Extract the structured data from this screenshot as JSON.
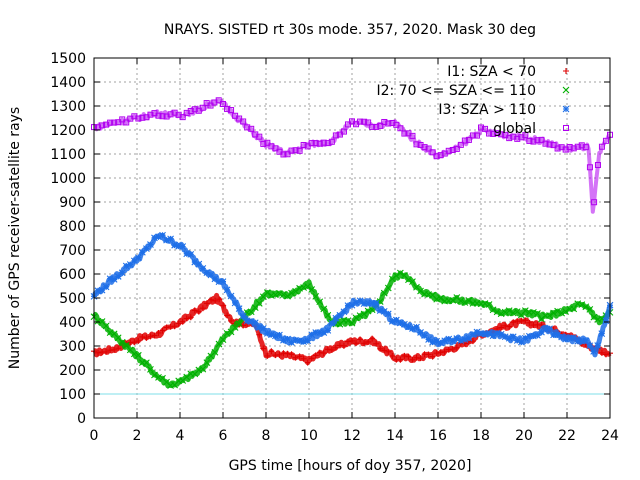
{
  "chart_data": {
    "type": "scatter",
    "title": "NRAYS. SISTED rt 30s mode. 357, 2020. Mask 30 deg",
    "xlabel": "GPS time [hours of doy 357, 2020]",
    "ylabel": "Number of GPS receiver-satellite rays",
    "xlim": [
      0,
      24
    ],
    "ylim": [
      0,
      1500
    ],
    "xticks": [
      "0",
      "2",
      "4",
      "6",
      "8",
      "10",
      "12",
      "14",
      "16",
      "18",
      "20",
      "22",
      "24"
    ],
    "yticks": [
      "0",
      "100",
      "200",
      "300",
      "400",
      "500",
      "600",
      "700",
      "800",
      "900",
      "1000",
      "1100",
      "1200",
      "1300",
      "1400",
      "1500"
    ],
    "grid": true,
    "legend_position": "top-right",
    "reference_line": {
      "y": 100,
      "color": "#7fdfe8"
    },
    "series": [
      {
        "name": "I1: SZA < 70",
        "marker": "+",
        "color": "#e00000",
        "x": [
          0,
          1,
          2,
          3,
          4,
          5,
          5.7,
          6.5,
          7.5,
          8,
          9,
          10,
          11,
          12,
          13,
          14,
          15,
          16,
          17,
          18,
          19,
          20,
          21,
          22,
          23,
          24
        ],
        "y": [
          270,
          290,
          330,
          350,
          400,
          460,
          500,
          400,
          390,
          270,
          260,
          240,
          290,
          320,
          320,
          250,
          250,
          270,
          300,
          350,
          380,
          400,
          380,
          350,
          300,
          270
        ]
      },
      {
        "name": "I2: 70 <= SZA <= 110",
        "marker": "x",
        "color": "#00b000",
        "x": [
          0,
          1,
          2,
          3,
          3.5,
          4,
          5,
          6,
          7,
          8,
          9,
          10,
          11,
          12,
          13,
          14,
          14.5,
          15,
          16,
          17,
          18,
          19,
          20,
          21,
          22,
          22.5,
          23,
          23.5,
          24
        ],
        "y": [
          430,
          340,
          260,
          170,
          140,
          150,
          200,
          330,
          420,
          520,
          510,
          560,
          400,
          400,
          450,
          590,
          600,
          540,
          500,
          490,
          480,
          440,
          440,
          420,
          450,
          470,
          460,
          400,
          440
        ]
      },
      {
        "name": "I3: SZA > 110",
        "marker": "*",
        "color": "#1e6fe8",
        "x": [
          0,
          1,
          2,
          3,
          4,
          5,
          6,
          7,
          8,
          9,
          10,
          11,
          12,
          13,
          14,
          15,
          16,
          17,
          18,
          19,
          20,
          21,
          22,
          23,
          23.3,
          24
        ],
        "y": [
          510,
          590,
          660,
          760,
          720,
          630,
          560,
          420,
          360,
          320,
          330,
          380,
          480,
          480,
          400,
          370,
          310,
          330,
          360,
          340,
          320,
          370,
          330,
          320,
          260,
          470
        ]
      },
      {
        "name": "global",
        "marker": "square",
        "color": "#b000f0",
        "x": [
          0,
          1,
          2,
          3,
          4,
          5,
          5.6,
          6,
          7,
          8,
          9,
          10,
          11,
          12,
          13,
          14,
          15,
          16,
          17,
          18,
          19,
          20,
          21,
          22,
          23,
          23.2,
          23.5,
          24
        ],
        "y": [
          1210,
          1230,
          1250,
          1270,
          1260,
          1290,
          1320,
          1310,
          1220,
          1140,
          1100,
          1140,
          1150,
          1230,
          1220,
          1230,
          1150,
          1090,
          1130,
          1200,
          1180,
          1170,
          1150,
          1120,
          1130,
          850,
          1100,
          1180
        ]
      }
    ]
  }
}
